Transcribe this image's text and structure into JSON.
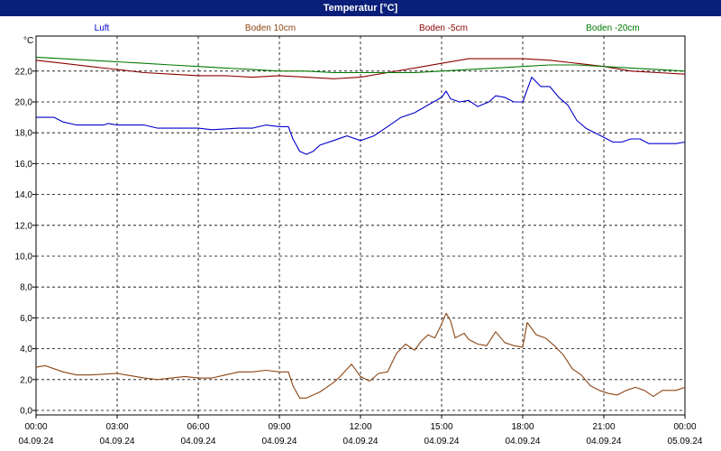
{
  "window": {
    "title": "Temperatur [°C]"
  },
  "chart_data": {
    "type": "line",
    "title": "Temperatur [°C]",
    "ylabel": "°C",
    "ylim": [
      0,
      23.3
    ],
    "grid": true,
    "legend_position": "top",
    "y_ticks": [
      "0,0",
      "2,0",
      "4,0",
      "6,0",
      "8,0",
      "10,0",
      "12,0",
      "14,0",
      "16,0",
      "18,0",
      "20,0",
      "22,0"
    ],
    "x_ticks": [
      {
        "time": "00:00",
        "date": "04.09.24"
      },
      {
        "time": "03:00",
        "date": "04.09.24"
      },
      {
        "time": "06:00",
        "date": "04.09.24"
      },
      {
        "time": "09:00",
        "date": "04.09.24"
      },
      {
        "time": "12:00",
        "date": "04.09.24"
      },
      {
        "time": "15:00",
        "date": "04.09.24"
      },
      {
        "time": "18:00",
        "date": "04.09.24"
      },
      {
        "time": "21:00",
        "date": "04.09.24"
      },
      {
        "time": "00:00",
        "date": "05.09.24"
      }
    ],
    "series": [
      {
        "name": "Luft",
        "color": "#0000cc",
        "points": [
          [
            "00:00",
            19.0
          ],
          [
            "00:40",
            19.0
          ],
          [
            "01:00",
            18.7
          ],
          [
            "01:30",
            18.5
          ],
          [
            "02:30",
            18.5
          ],
          [
            "02:40",
            18.6
          ],
          [
            "03:00",
            18.5
          ],
          [
            "04:00",
            18.5
          ],
          [
            "04:30",
            18.3
          ],
          [
            "06:00",
            18.3
          ],
          [
            "06:30",
            18.2
          ],
          [
            "07:30",
            18.3
          ],
          [
            "08:00",
            18.3
          ],
          [
            "08:30",
            18.5
          ],
          [
            "09:00",
            18.4
          ],
          [
            "09:20",
            18.4
          ],
          [
            "09:30",
            17.6
          ],
          [
            "09:45",
            16.8
          ],
          [
            "10:00",
            16.6
          ],
          [
            "10:15",
            16.8
          ],
          [
            "10:30",
            17.2
          ],
          [
            "11:00",
            17.5
          ],
          [
            "11:30",
            17.8
          ],
          [
            "12:00",
            17.5
          ],
          [
            "12:30",
            17.8
          ],
          [
            "13:00",
            18.4
          ],
          [
            "13:30",
            19.0
          ],
          [
            "14:00",
            19.3
          ],
          [
            "14:30",
            19.8
          ],
          [
            "15:00",
            20.3
          ],
          [
            "15:10",
            20.7
          ],
          [
            "15:20",
            20.2
          ],
          [
            "15:40",
            20.0
          ],
          [
            "16:00",
            20.1
          ],
          [
            "16:20",
            19.7
          ],
          [
            "16:45",
            20.0
          ],
          [
            "17:00",
            20.4
          ],
          [
            "17:20",
            20.3
          ],
          [
            "17:40",
            20.0
          ],
          [
            "18:00",
            20.0
          ],
          [
            "18:20",
            21.6
          ],
          [
            "18:40",
            21.0
          ],
          [
            "19:00",
            21.0
          ],
          [
            "19:20",
            20.3
          ],
          [
            "19:40",
            19.8
          ],
          [
            "20:00",
            18.8
          ],
          [
            "20:20",
            18.3
          ],
          [
            "20:40",
            18.0
          ],
          [
            "21:00",
            17.7
          ],
          [
            "21:20",
            17.4
          ],
          [
            "21:40",
            17.4
          ],
          [
            "22:00",
            17.6
          ],
          [
            "22:20",
            17.6
          ],
          [
            "22:40",
            17.3
          ],
          [
            "23:00",
            17.3
          ],
          [
            "23:40",
            17.3
          ],
          [
            "24:00",
            17.4
          ]
        ]
      },
      {
        "name": "Boden 10cm",
        "color": "#8b4513",
        "points": [
          [
            "00:00",
            2.8
          ],
          [
            "00:20",
            2.9
          ],
          [
            "00:40",
            2.7
          ],
          [
            "01:00",
            2.5
          ],
          [
            "01:30",
            2.3
          ],
          [
            "02:00",
            2.3
          ],
          [
            "03:00",
            2.4
          ],
          [
            "03:20",
            2.3
          ],
          [
            "04:00",
            2.1
          ],
          [
            "04:30",
            2.0
          ],
          [
            "05:00",
            2.1
          ],
          [
            "05:30",
            2.2
          ],
          [
            "06:00",
            2.1
          ],
          [
            "06:30",
            2.1
          ],
          [
            "07:00",
            2.3
          ],
          [
            "07:30",
            2.5
          ],
          [
            "08:00",
            2.5
          ],
          [
            "08:30",
            2.6
          ],
          [
            "09:00",
            2.5
          ],
          [
            "09:20",
            2.5
          ],
          [
            "09:30",
            1.6
          ],
          [
            "09:45",
            0.8
          ],
          [
            "10:00",
            0.8
          ],
          [
            "10:30",
            1.2
          ],
          [
            "11:00",
            1.8
          ],
          [
            "11:15",
            2.2
          ],
          [
            "11:40",
            3.0
          ],
          [
            "12:00",
            2.2
          ],
          [
            "12:20",
            1.9
          ],
          [
            "12:40",
            2.4
          ],
          [
            "13:00",
            2.5
          ],
          [
            "13:20",
            3.7
          ],
          [
            "13:40",
            4.3
          ],
          [
            "14:00",
            3.9
          ],
          [
            "14:15",
            4.5
          ],
          [
            "14:30",
            4.9
          ],
          [
            "14:45",
            4.7
          ],
          [
            "15:00",
            5.6
          ],
          [
            "15:10",
            6.3
          ],
          [
            "15:20",
            5.8
          ],
          [
            "15:30",
            4.7
          ],
          [
            "15:50",
            5.0
          ],
          [
            "16:00",
            4.6
          ],
          [
            "16:20",
            4.3
          ],
          [
            "16:40",
            4.2
          ],
          [
            "17:00",
            5.1
          ],
          [
            "17:20",
            4.4
          ],
          [
            "17:40",
            4.2
          ],
          [
            "18:00",
            4.1
          ],
          [
            "18:10",
            5.7
          ],
          [
            "18:30",
            4.9
          ],
          [
            "18:50",
            4.7
          ],
          [
            "19:10",
            4.2
          ],
          [
            "19:30",
            3.6
          ],
          [
            "19:50",
            2.7
          ],
          [
            "20:10",
            2.3
          ],
          [
            "20:30",
            1.6
          ],
          [
            "20:50",
            1.3
          ],
          [
            "21:10",
            1.1
          ],
          [
            "21:30",
            1.0
          ],
          [
            "21:50",
            1.3
          ],
          [
            "22:10",
            1.5
          ],
          [
            "22:30",
            1.3
          ],
          [
            "22:50",
            0.9
          ],
          [
            "23:10",
            1.3
          ],
          [
            "23:40",
            1.3
          ],
          [
            "24:00",
            1.5
          ]
        ]
      },
      {
        "name": "Boden -5cm",
        "color": "#8b0000",
        "points": [
          [
            "00:00",
            22.7
          ],
          [
            "01:00",
            22.5
          ],
          [
            "02:00",
            22.3
          ],
          [
            "03:00",
            22.1
          ],
          [
            "04:00",
            21.9
          ],
          [
            "05:00",
            21.8
          ],
          [
            "06:00",
            21.7
          ],
          [
            "07:00",
            21.7
          ],
          [
            "08:00",
            21.6
          ],
          [
            "09:00",
            21.7
          ],
          [
            "10:00",
            21.6
          ],
          [
            "11:00",
            21.5
          ],
          [
            "12:00",
            21.6
          ],
          [
            "13:00",
            21.9
          ],
          [
            "14:00",
            22.2
          ],
          [
            "15:00",
            22.5
          ],
          [
            "16:00",
            22.8
          ],
          [
            "17:00",
            22.8
          ],
          [
            "18:00",
            22.8
          ],
          [
            "19:00",
            22.7
          ],
          [
            "20:00",
            22.5
          ],
          [
            "21:00",
            22.3
          ],
          [
            "22:00",
            22.0
          ],
          [
            "23:00",
            21.9
          ],
          [
            "24:00",
            21.8
          ]
        ]
      },
      {
        "name": "Boden -20cm",
        "color": "#007a00",
        "points": [
          [
            "00:00",
            22.9
          ],
          [
            "01:00",
            22.8
          ],
          [
            "02:00",
            22.7
          ],
          [
            "03:00",
            22.6
          ],
          [
            "04:00",
            22.5
          ],
          [
            "05:00",
            22.4
          ],
          [
            "06:00",
            22.3
          ],
          [
            "07:00",
            22.2
          ],
          [
            "08:00",
            22.1
          ],
          [
            "09:00",
            22.0
          ],
          [
            "10:00",
            22.0
          ],
          [
            "11:00",
            21.9
          ],
          [
            "12:00",
            21.9
          ],
          [
            "13:00",
            21.9
          ],
          [
            "14:00",
            21.9
          ],
          [
            "15:00",
            22.0
          ],
          [
            "16:00",
            22.1
          ],
          [
            "17:00",
            22.2
          ],
          [
            "18:00",
            22.3
          ],
          [
            "19:00",
            22.4
          ],
          [
            "20:00",
            22.4
          ],
          [
            "21:00",
            22.3
          ],
          [
            "22:00",
            22.2
          ],
          [
            "23:00",
            22.1
          ],
          [
            "24:00",
            22.0
          ]
        ]
      }
    ]
  }
}
